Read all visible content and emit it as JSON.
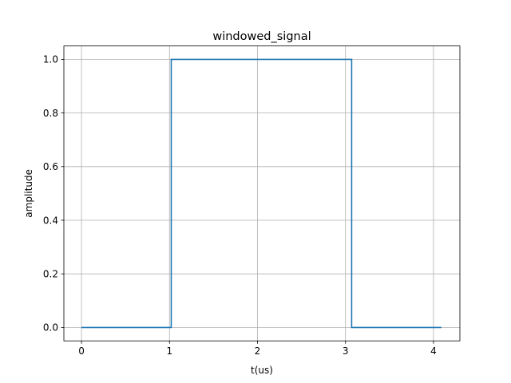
{
  "chart_data": {
    "type": "line",
    "title": "windowed_signal",
    "xlabel": "t(us)",
    "ylabel": "amplitude",
    "xlim": [
      -0.2,
      4.3
    ],
    "ylim": [
      -0.05,
      1.05
    ],
    "xticks": [
      0,
      1,
      2,
      3,
      4
    ],
    "xtick_labels": [
      "0",
      "1",
      "2",
      "3",
      "4"
    ],
    "yticks": [
      0.0,
      0.2,
      0.4,
      0.6,
      0.8,
      1.0
    ],
    "ytick_labels": [
      "0.0",
      "0.2",
      "0.4",
      "0.6",
      "0.8",
      "1.0"
    ],
    "grid": true,
    "series": [
      {
        "color": "#1f77b4",
        "drawstyle": "steps",
        "x": [
          0,
          1.02,
          1.02,
          3.07,
          3.07,
          4.09
        ],
        "y": [
          0,
          0,
          1,
          1,
          0,
          0
        ]
      }
    ]
  }
}
